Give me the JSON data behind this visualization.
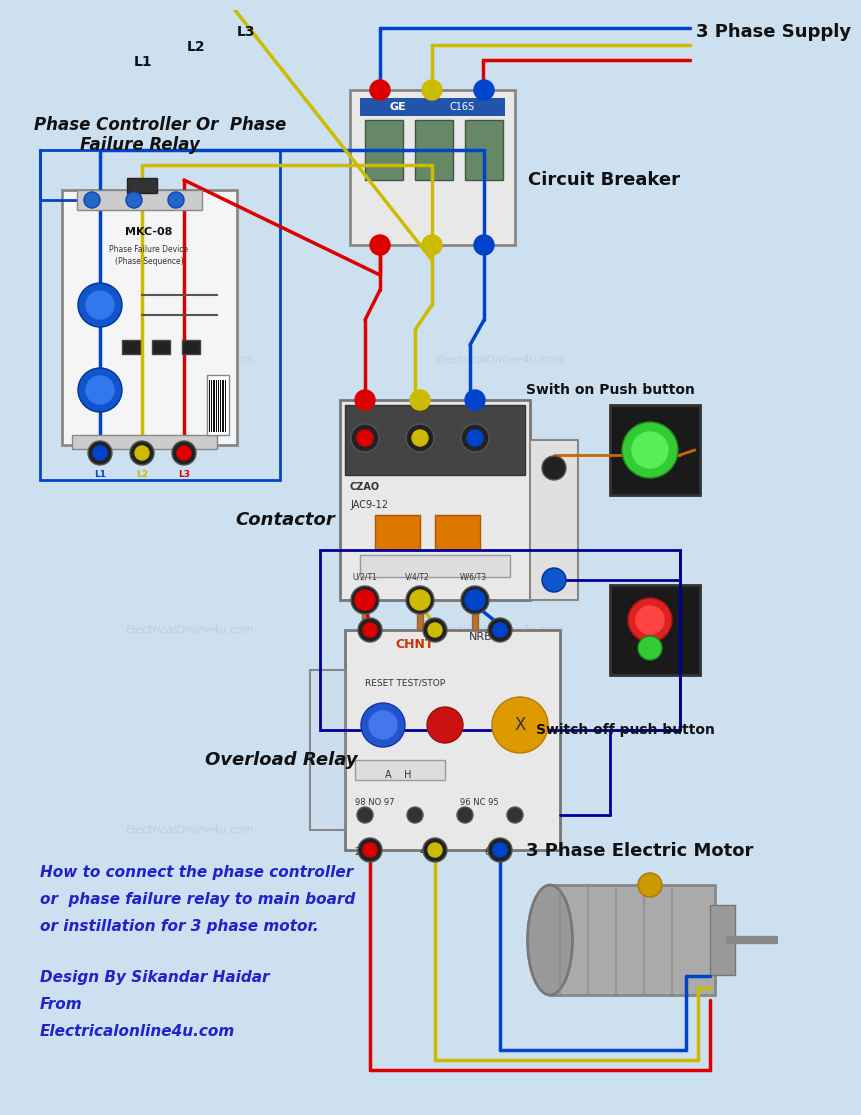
{
  "bg_color": "#cce0f0",
  "wire_red": "#dd0000",
  "wire_yellow": "#ccbb00",
  "wire_blue": "#0044cc",
  "wire_dark_blue": "#000099",
  "wire_orange": "#cc6600",
  "wire_copper": "#b87333",
  "lw_main": 2.5,
  "lw_ctrl": 2.0,
  "text_black": "#111111",
  "text_blue": "#0000cc",
  "text_italic_blue": "#2222cc",
  "labels": {
    "phase_supply": "3 Phase Supply",
    "circuit_breaker": "Circuit Breaker",
    "phase_relay_title1": "Phase Controller Or  Phase",
    "phase_relay_title2": "Failure Relay",
    "contactor": "Contactor",
    "overload_relay": "Overload Relay",
    "switch_on": "Swith on Push button",
    "switch_off": "Switch off push button",
    "motor": "3 Phase Electric Motor",
    "L1": "L1",
    "L2": "L2",
    "L3": "L3",
    "MKC": "MKC-08",
    "CHNT": "CHNT",
    "NR838": "NRB-38",
    "CZAO": "CZAO",
    "JAC": "JAC9-12",
    "GE": "GE",
    "C16S": "C16S",
    "reset_label": "RESET TEST/STOP",
    "A_H": "A    H",
    "term98": "98 NO 97",
    "term96": "96 NC 95",
    "term_t1": "2/T1",
    "term_t2": "4/T2",
    "term_t3": "6/T3",
    "term_ut1": "U/2/T1",
    "term_vt2": "V/4/T2",
    "term_wt3": "W/6/T3",
    "desc1": "How to connect the phase controller",
    "desc2": "or  phase failure relay to main board",
    "desc3": "or instillation for 3 phase motor.",
    "design1": "Design By Sikandar Haidar",
    "design2": "From",
    "design3": "Electricalonline4u.com",
    "watermark": "ElectricalOnline4u.com"
  }
}
